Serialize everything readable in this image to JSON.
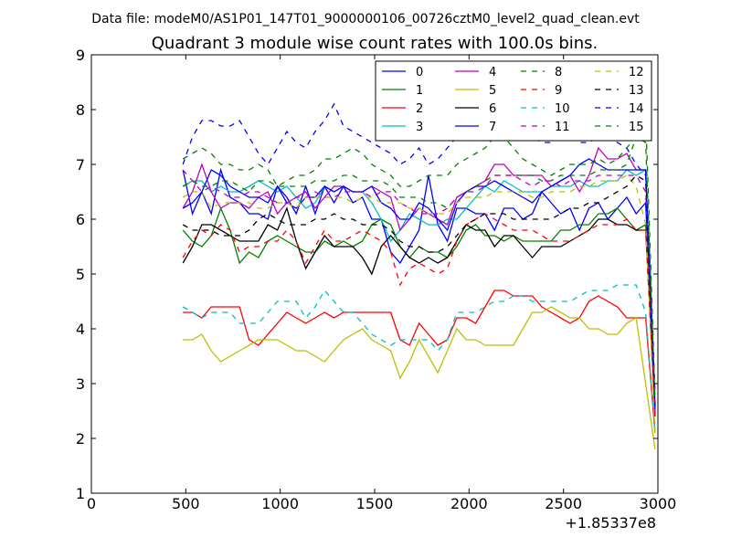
{
  "chart_data": {
    "type": "line",
    "suptitle": "Data file: modeM0/AS1P01_147T01_9000000106_00726cztM0_level2_quad_clean.evt",
    "title": "Quadrant 3 module wise count rates with 100.0s bins.",
    "xlabel": "",
    "ylabel": "",
    "x_offset_label": "+1.85337e8",
    "xlim": [
      0,
      3000
    ],
    "ylim": [
      1,
      9
    ],
    "xticks": [
      0,
      500,
      1000,
      1500,
      2000,
      2500,
      3000
    ],
    "yticks": [
      1,
      2,
      3,
      4,
      5,
      6,
      7,
      8,
      9
    ],
    "xtick_labels": [
      "0",
      "500",
      "1000",
      "1500",
      "2000",
      "2500",
      "3000"
    ],
    "ytick_labels": [
      "1",
      "2",
      "3",
      "4",
      "5",
      "6",
      "7",
      "8",
      "9"
    ],
    "grid": false,
    "legend_position": "top-right",
    "x": [
      485,
      535,
      585,
      635,
      685,
      735,
      785,
      835,
      885,
      935,
      985,
      1035,
      1085,
      1135,
      1185,
      1235,
      1285,
      1335,
      1385,
      1435,
      1485,
      1535,
      1585,
      1635,
      1685,
      1735,
      1785,
      1835,
      1885,
      1935,
      1985,
      2035,
      2085,
      2135,
      2185,
      2235,
      2285,
      2335,
      2385,
      2435,
      2485,
      2535,
      2585,
      2635,
      2685,
      2735,
      2785,
      2835,
      2885,
      2935,
      2985
    ],
    "series": [
      {
        "name": "0",
        "color": "#0000ff",
        "dash": "solid",
        "values": [
          6.9,
          6.1,
          6.5,
          6.1,
          6.9,
          6.4,
          6.3,
          6.1,
          6.1,
          6.0,
          6.6,
          6.4,
          6.1,
          6.6,
          6.1,
          6.6,
          6.3,
          6.6,
          6.3,
          6.4,
          6.0,
          6.0,
          5.4,
          5.2,
          5.5,
          5.8,
          6.8,
          5.9,
          5.6,
          6.2,
          6.2,
          6.1,
          6.1,
          5.8,
          6.2,
          6.2,
          6.0,
          6.1,
          6.5,
          6.3,
          6.1,
          6.2,
          5.8,
          6.2,
          6.3,
          6.0,
          6.2,
          6.4,
          6.1,
          6.3,
          2.5
        ]
      },
      {
        "name": "1",
        "color": "#008000",
        "dash": "solid",
        "values": [
          5.8,
          5.6,
          5.5,
          5.7,
          6.2,
          5.8,
          5.2,
          5.4,
          5.3,
          5.6,
          5.7,
          5.6,
          5.5,
          5.4,
          5.4,
          5.6,
          5.5,
          5.6,
          5.5,
          5.6,
          5.9,
          6.0,
          5.9,
          5.5,
          5.3,
          5.5,
          5.4,
          5.4,
          5.3,
          5.5,
          5.8,
          5.9,
          5.7,
          5.7,
          5.6,
          5.7,
          5.6,
          5.6,
          5.6,
          5.6,
          5.8,
          5.8,
          5.9,
          5.9,
          6.1,
          6.1,
          6.2,
          6.0,
          5.8,
          5.9,
          2.6
        ]
      },
      {
        "name": "2",
        "color": "#ff0000",
        "dash": "solid",
        "values": [
          4.3,
          4.3,
          4.2,
          4.4,
          4.4,
          4.4,
          4.4,
          3.8,
          3.7,
          3.9,
          4.1,
          4.3,
          4.2,
          4.1,
          4.2,
          4.3,
          4.2,
          4.3,
          4.3,
          4.3,
          4.3,
          4.3,
          4.3,
          3.8,
          3.7,
          4.1,
          3.9,
          3.7,
          3.8,
          4.2,
          4.2,
          4.1,
          4.4,
          4.7,
          4.7,
          4.6,
          4.6,
          4.6,
          4.4,
          4.3,
          4.2,
          4.1,
          4.2,
          4.5,
          4.6,
          4.5,
          4.4,
          4.2,
          4.2,
          4.2,
          2.1
        ]
      },
      {
        "name": "3",
        "color": "#00bfbf",
        "dash": "solid",
        "values": [
          6.6,
          6.7,
          6.7,
          6.5,
          6.6,
          6.5,
          6.5,
          6.6,
          6.7,
          6.6,
          6.5,
          6.6,
          6.4,
          6.2,
          6.3,
          6.6,
          6.5,
          6.6,
          6.5,
          6.5,
          6.3,
          6.0,
          5.6,
          5.8,
          6.1,
          6.0,
          5.9,
          5.9,
          6.0,
          6.0,
          6.2,
          6.4,
          6.6,
          6.5,
          6.7,
          6.6,
          6.5,
          6.5,
          6.5,
          6.6,
          6.6,
          6.6,
          6.7,
          6.6,
          6.6,
          6.7,
          6.7,
          6.9,
          6.8,
          6.9,
          2.4
        ]
      },
      {
        "name": "4",
        "color": "#bf00bf",
        "dash": "solid",
        "values": [
          6.2,
          6.5,
          7.0,
          6.5,
          6.2,
          6.3,
          6.3,
          6.2,
          6.4,
          6.5,
          6.1,
          6.3,
          6.4,
          6.5,
          6.2,
          6.4,
          6.6,
          6.6,
          6.5,
          6.5,
          6.6,
          6.5,
          6.4,
          5.8,
          6.0,
          6.2,
          6.1,
          6.0,
          5.9,
          6.4,
          6.5,
          6.6,
          6.7,
          7.0,
          7.0,
          6.8,
          6.8,
          6.8,
          6.8,
          6.6,
          6.7,
          6.8,
          6.5,
          6.8,
          7.3,
          7.1,
          7.1,
          7.2,
          6.9,
          6.9,
          2.4
        ]
      },
      {
        "name": "5",
        "color": "#bfbf00",
        "dash": "solid",
        "values": [
          3.8,
          3.8,
          3.9,
          3.6,
          3.4,
          3.5,
          3.6,
          3.7,
          3.8,
          3.8,
          3.8,
          3.7,
          3.6,
          3.6,
          3.5,
          3.4,
          3.6,
          3.8,
          3.9,
          4.0,
          3.8,
          3.7,
          3.6,
          3.1,
          3.4,
          3.8,
          3.5,
          3.2,
          3.6,
          4.0,
          3.8,
          3.8,
          3.7,
          3.7,
          3.7,
          3.7,
          4.0,
          4.3,
          4.3,
          4.4,
          4.3,
          4.2,
          4.2,
          4.0,
          4.0,
          3.9,
          3.9,
          4.1,
          4.2,
          3.0,
          1.8
        ]
      },
      {
        "name": "6",
        "color": "#000000",
        "dash": "solid",
        "values": [
          5.2,
          5.5,
          5.9,
          5.9,
          5.8,
          5.7,
          5.6,
          5.6,
          5.6,
          5.9,
          5.8,
          6.2,
          5.6,
          5.1,
          5.4,
          5.7,
          5.5,
          5.5,
          5.5,
          5.3,
          5.0,
          5.5,
          5.7,
          5.5,
          5.3,
          5.2,
          5.3,
          5.2,
          5.3,
          5.6,
          5.9,
          5.8,
          5.8,
          5.5,
          5.7,
          5.7,
          5.5,
          5.3,
          5.5,
          5.5,
          5.5,
          5.6,
          5.7,
          5.8,
          6.0,
          6.0,
          5.9,
          5.9,
          5.8,
          5.8,
          2.6
        ]
      },
      {
        "name": "7",
        "color": "#0000ff",
        "dash": "solid",
        "values": [
          6.2,
          6.3,
          6.5,
          6.9,
          6.8,
          6.6,
          6.5,
          6.4,
          6.4,
          6.3,
          6.6,
          6.3,
          6.2,
          6.4,
          6.4,
          6.6,
          6.5,
          6.6,
          6.5,
          6.5,
          6.6,
          6.3,
          6.2,
          6.0,
          6.0,
          6.3,
          6.2,
          6.0,
          5.8,
          6.3,
          6.5,
          6.6,
          6.6,
          6.7,
          6.6,
          6.5,
          6.4,
          6.3,
          6.5,
          6.6,
          6.7,
          6.8,
          7.0,
          7.1,
          7.0,
          6.9,
          6.9,
          6.9,
          6.9,
          6.9,
          2.4
        ]
      },
      {
        "name": "8",
        "color": "#008000",
        "dash": "dashed",
        "values": [
          6.6,
          6.7,
          6.6,
          6.6,
          6.7,
          6.7,
          6.6,
          6.5,
          6.7,
          6.7,
          6.6,
          6.6,
          6.6,
          6.6,
          6.7,
          6.7,
          6.7,
          6.8,
          6.8,
          6.7,
          6.7,
          6.7,
          6.6,
          6.4,
          6.4,
          6.4,
          6.3,
          6.3,
          6.2,
          6.4,
          6.5,
          6.6,
          6.7,
          6.8,
          6.8,
          6.8,
          6.8,
          6.8,
          6.7,
          6.7,
          6.8,
          6.8,
          6.8,
          6.8,
          6.9,
          6.9,
          6.9,
          7.0,
          7.5,
          7.9,
          2.8
        ]
      },
      {
        "name": "9",
        "color": "#ff0000",
        "dash": "dashed",
        "values": [
          5.3,
          5.6,
          5.8,
          5.7,
          5.9,
          5.8,
          5.4,
          5.5,
          5.5,
          5.6,
          5.6,
          5.8,
          5.6,
          5.2,
          5.5,
          5.8,
          5.6,
          5.6,
          5.7,
          5.8,
          5.7,
          5.6,
          5.4,
          4.8,
          5.1,
          5.2,
          5.1,
          5.0,
          5.1,
          5.6,
          5.9,
          6.0,
          6.1,
          6.0,
          5.9,
          5.8,
          5.8,
          5.8,
          5.7,
          5.6,
          5.6,
          5.6,
          5.7,
          5.8,
          5.9,
          5.9,
          5.9,
          6.0,
          5.8,
          5.8,
          2.4
        ]
      },
      {
        "name": "10",
        "color": "#00bfbf",
        "dash": "dashed",
        "values": [
          4.4,
          4.3,
          4.2,
          4.3,
          4.3,
          4.3,
          4.1,
          4.1,
          4.1,
          4.3,
          4.5,
          4.5,
          4.5,
          4.2,
          4.4,
          4.7,
          4.5,
          4.3,
          4.3,
          4.1,
          3.9,
          3.8,
          3.7,
          3.8,
          3.8,
          3.8,
          3.8,
          3.6,
          3.8,
          4.3,
          4.3,
          4.3,
          4.4,
          4.5,
          4.5,
          4.6,
          4.6,
          4.5,
          4.5,
          4.5,
          4.5,
          4.5,
          4.6,
          4.7,
          4.7,
          4.7,
          4.8,
          4.8,
          4.8,
          4.3,
          2.1
        ]
      },
      {
        "name": "11",
        "color": "#bf00bf",
        "dash": "dashed",
        "values": [
          6.9,
          6.7,
          6.5,
          6.6,
          6.5,
          6.4,
          6.4,
          6.5,
          6.5,
          6.4,
          6.3,
          6.3,
          6.4,
          6.4,
          6.5,
          6.4,
          6.4,
          6.5,
          6.5,
          6.5,
          6.4,
          6.5,
          6.5,
          6.3,
          6.2,
          6.1,
          6.1,
          6.1,
          6.2,
          6.4,
          6.5,
          6.5,
          6.6,
          6.8,
          6.8,
          6.8,
          6.7,
          6.6,
          6.7,
          6.7,
          6.6,
          6.7,
          6.7,
          6.7,
          6.8,
          6.8,
          6.8,
          6.8,
          6.8,
          6.5,
          2.8
        ]
      },
      {
        "name": "12",
        "color": "#bfbf00",
        "dash": "dashed",
        "values": [
          6.4,
          6.5,
          6.5,
          6.2,
          6.3,
          6.3,
          6.3,
          6.3,
          6.2,
          6.2,
          6.3,
          6.3,
          6.2,
          6.4,
          6.4,
          6.4,
          6.4,
          6.4,
          6.3,
          6.4,
          6.4,
          6.3,
          6.3,
          6.3,
          6.2,
          6.2,
          6.1,
          6.1,
          6.1,
          6.3,
          6.4,
          6.4,
          6.4,
          6.5,
          6.5,
          6.5,
          6.5,
          6.4,
          6.4,
          6.5,
          6.5,
          6.5,
          6.6,
          6.6,
          6.7,
          6.7,
          6.7,
          6.8,
          6.6,
          5.9,
          2.1
        ]
      },
      {
        "name": "13",
        "color": "#000000",
        "dash": "dashed",
        "values": [
          5.9,
          5.8,
          5.8,
          5.8,
          5.7,
          5.7,
          5.7,
          5.8,
          6.0,
          6.1,
          6.0,
          5.9,
          5.9,
          5.9,
          6.0,
          6.0,
          6.1,
          6.0,
          6.0,
          5.9,
          5.9,
          5.9,
          5.8,
          5.6,
          5.5,
          5.5,
          5.4,
          5.4,
          5.5,
          5.7,
          5.9,
          6.0,
          6.1,
          6.1,
          6.1,
          6.0,
          6.0,
          6.0,
          6.0,
          6.0,
          6.1,
          6.2,
          6.2,
          6.3,
          6.3,
          6.4,
          6.5,
          6.6,
          6.8,
          6.7,
          2.6
        ]
      },
      {
        "name": "14",
        "color": "#0000ff",
        "dash": "dashed",
        "values": [
          7.0,
          7.5,
          7.8,
          7.8,
          7.7,
          7.7,
          7.8,
          7.5,
          7.2,
          7.0,
          7.3,
          7.6,
          7.4,
          7.3,
          7.6,
          7.8,
          8.1,
          7.7,
          7.6,
          7.5,
          7.4,
          7.3,
          7.2,
          7.0,
          7.1,
          7.3,
          7.0,
          7.1,
          7.3,
          7.5,
          7.7,
          7.7,
          7.6,
          7.5,
          7.6,
          7.7,
          7.6,
          7.5,
          7.4,
          7.4,
          7.5,
          7.6,
          7.4,
          7.4,
          7.5,
          7.6,
          7.4,
          7.3,
          7.0,
          6.8,
          2.5
        ]
      },
      {
        "name": "15",
        "color": "#008000",
        "dash": "dashed",
        "values": [
          7.1,
          7.2,
          7.3,
          7.2,
          7.0,
          7.0,
          6.9,
          6.9,
          7.0,
          6.9,
          6.6,
          6.7,
          6.8,
          6.8,
          6.9,
          7.1,
          7.1,
          7.2,
          7.3,
          7.2,
          7.0,
          6.9,
          6.8,
          6.6,
          6.6,
          6.7,
          6.8,
          6.8,
          6.8,
          7.0,
          7.1,
          7.2,
          7.3,
          7.5,
          7.5,
          7.3,
          7.1,
          7.0,
          6.9,
          6.8,
          6.9,
          7.0,
          7.0,
          7.0,
          7.1,
          7.0,
          7.1,
          7.3,
          7.5,
          7.4,
          2.7
        ]
      }
    ]
  }
}
